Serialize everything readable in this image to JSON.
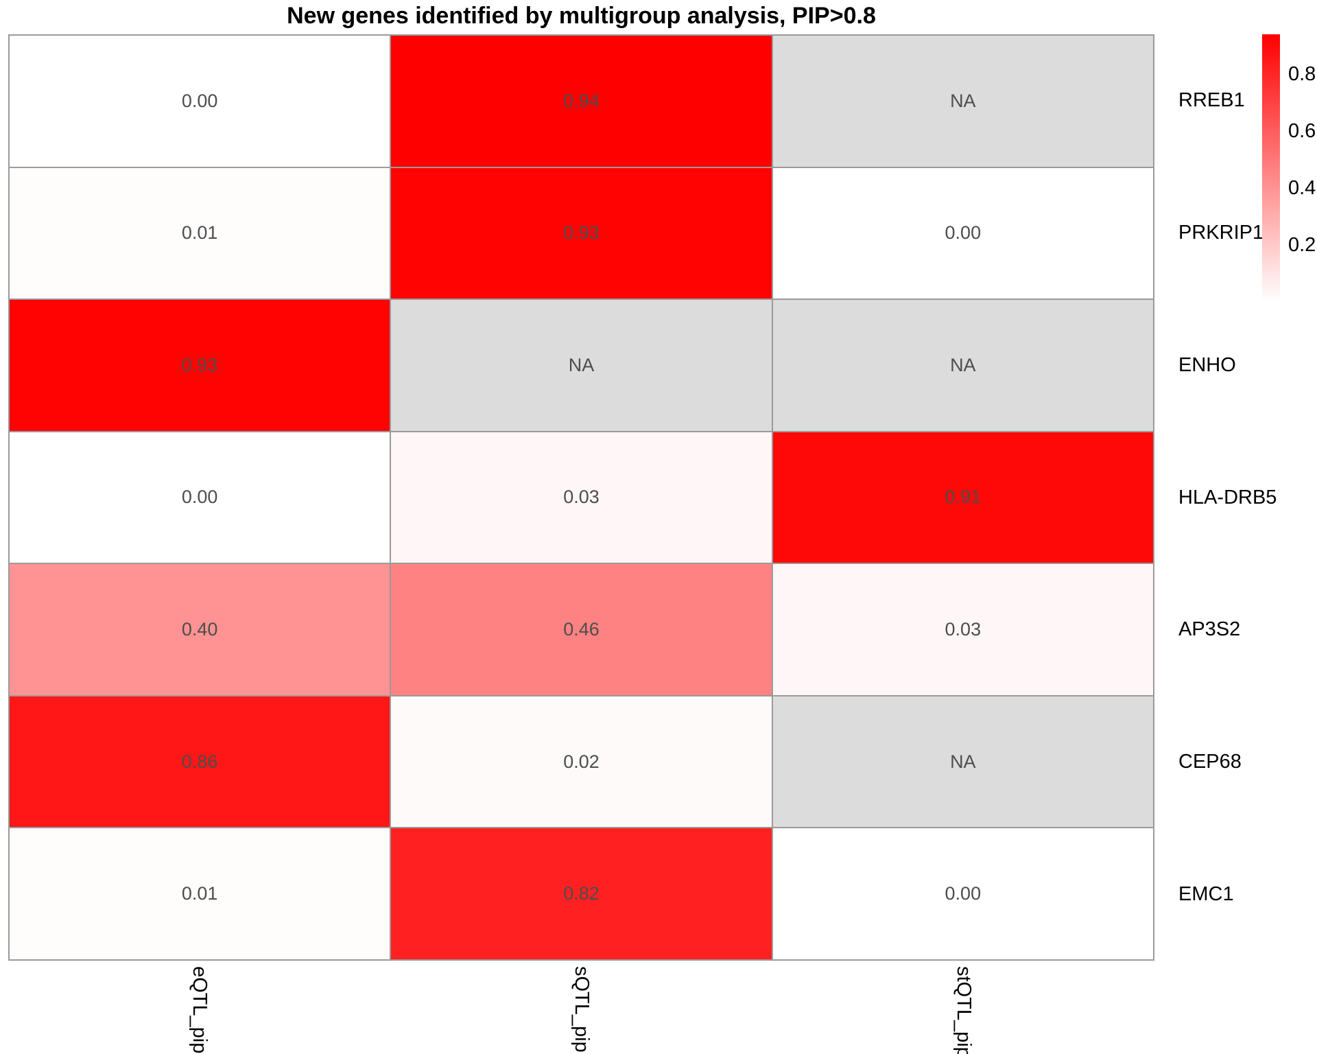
{
  "chart_data": {
    "type": "heatmap",
    "title": "New genes identified by multigroup analysis, PIP>0.8",
    "columns": [
      "eQTL_pip",
      "sQTL_pip",
      "stQTL_pip"
    ],
    "rows": [
      "RREB1",
      "PRKRIP1",
      "ENHO",
      "HLA-DRB5",
      "AP3S2",
      "CEP68",
      "EMC1"
    ],
    "values": [
      [
        0.0,
        0.94,
        null
      ],
      [
        0.01,
        0.93,
        0.0
      ],
      [
        0.93,
        null,
        null
      ],
      [
        0.0,
        0.03,
        0.91
      ],
      [
        0.4,
        0.46,
        0.03
      ],
      [
        0.86,
        0.02,
        null
      ],
      [
        0.01,
        0.82,
        0.0
      ]
    ],
    "value_labels": [
      [
        "0.00",
        "0.94",
        "NA"
      ],
      [
        "0.01",
        "0.93",
        "0.00"
      ],
      [
        "0.93",
        "NA",
        "NA"
      ],
      [
        "0.00",
        "0.03",
        "0.91"
      ],
      [
        "0.40",
        "0.46",
        "0.03"
      ],
      [
        "0.86",
        "0.02",
        "NA"
      ],
      [
        "0.01",
        "0.82",
        "0.00"
      ]
    ],
    "value_max": 0.94,
    "colors": {
      "high": "#FF0000",
      "low": "#FFFFFF",
      "na_cell": "#DCDCDC",
      "cell_text": "#4D4D4D",
      "grid_line": "#9A9A9A"
    },
    "colorbar": {
      "position": "right",
      "ticks": [
        "0.8",
        "0.6",
        "0.4",
        "0.2"
      ]
    },
    "legend_position": "right",
    "grid": "on"
  }
}
